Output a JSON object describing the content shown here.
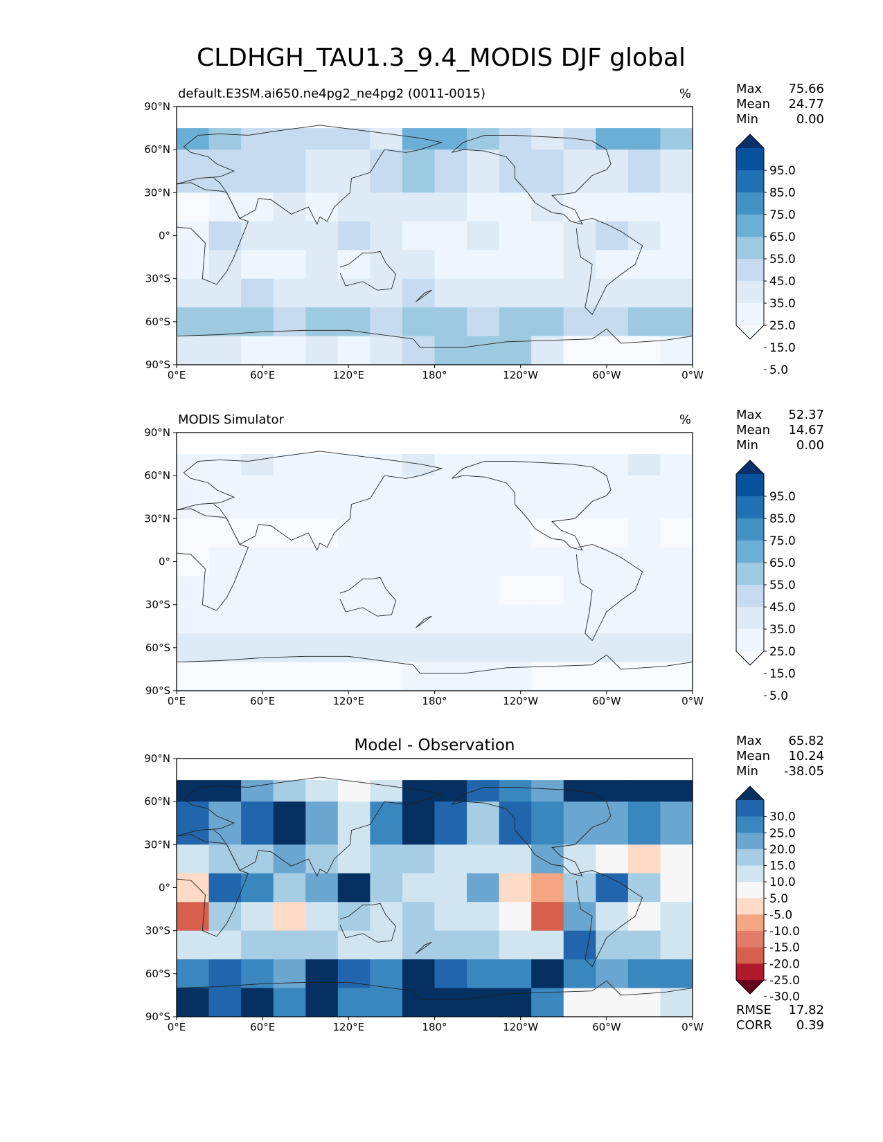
{
  "figure": {
    "title": "CLDHGH_TAU1.3_9.4_MODIS DJF global"
  },
  "chart_data": [
    {
      "type": "heatmap",
      "panel": "test",
      "subtitle_left": "default.E3SM.ai650.ne4pg2_ne4pg2 (0011-0015)",
      "subtitle_center": "",
      "units": "%",
      "stats": {
        "max": "75.66",
        "mean": "24.77",
        "min": "0.00"
      },
      "stat_labels": {
        "max": "Max",
        "mean": "Mean",
        "min": "Min"
      },
      "xticks": [
        "0°E",
        "60°E",
        "120°E",
        "180°",
        "120°W",
        "60°W",
        "0°W"
      ],
      "yticks": [
        "90°N",
        "60°N",
        "30°N",
        "0°",
        "30°S",
        "60°S",
        "90°S"
      ],
      "xlim": [
        0,
        360
      ],
      "ylim": [
        -90,
        90
      ],
      "colorbar": {
        "labels": [
          "95.0",
          "85.0",
          "75.0",
          "65.0",
          "55.0",
          "45.0",
          "35.0",
          "25.0",
          "15.0",
          "5.0"
        ],
        "colors": [
          "#08306b",
          "#08519c",
          "#2171b5",
          "#4292c6",
          "#6baed6",
          "#9ecae1",
          "#c6dbef",
          "#deebf7",
          "#eef5fc",
          "#f7fbff"
        ],
        "extend": "both"
      },
      "field": [
        {
          "lat_band": [
            60,
            75
          ],
          "values": [
            55,
            45,
            40,
            40,
            35,
            35,
            30,
            55,
            55,
            45,
            40,
            30,
            40,
            60,
            60,
            45
          ]
        },
        {
          "lat_band": [
            30,
            60
          ],
          "values": [
            40,
            35,
            40,
            35,
            30,
            25,
            40,
            45,
            40,
            30,
            40,
            35,
            30,
            30,
            35,
            30
          ]
        },
        {
          "lat_band": [
            10,
            30
          ],
          "values": [
            10,
            15,
            20,
            25,
            20,
            25,
            30,
            30,
            25,
            20,
            20,
            25,
            20,
            15,
            20,
            15
          ]
        },
        {
          "lat_band": [
            -10,
            10
          ],
          "values": [
            15,
            40,
            25,
            30,
            30,
            35,
            25,
            20,
            20,
            25,
            20,
            15,
            25,
            35,
            30,
            20
          ]
        },
        {
          "lat_band": [
            -30,
            -10
          ],
          "values": [
            20,
            25,
            15,
            20,
            25,
            20,
            25,
            25,
            20,
            15,
            20,
            20,
            25,
            20,
            15,
            20
          ]
        },
        {
          "lat_band": [
            -50,
            -30
          ],
          "values": [
            30,
            25,
            35,
            30,
            30,
            25,
            30,
            35,
            30,
            30,
            25,
            25,
            30,
            30,
            30,
            30
          ]
        },
        {
          "lat_band": [
            -70,
            -50
          ],
          "values": [
            45,
            50,
            45,
            40,
            50,
            45,
            40,
            50,
            45,
            40,
            45,
            50,
            40,
            40,
            45,
            45
          ]
        },
        {
          "lat_band": [
            -90,
            -70
          ],
          "values": [
            25,
            25,
            20,
            20,
            25,
            20,
            25,
            40,
            45,
            50,
            50,
            30,
            10,
            10,
            10,
            20
          ]
        }
      ]
    },
    {
      "type": "heatmap",
      "panel": "reference",
      "subtitle_left": "MODIS Simulator",
      "subtitle_center": "",
      "units": "%",
      "stats": {
        "max": "52.37",
        "mean": "14.67",
        "min": "0.00"
      },
      "stat_labels": {
        "max": "Max",
        "mean": "Mean",
        "min": "Min"
      },
      "xticks": [
        "0°E",
        "60°E",
        "120°E",
        "180°",
        "120°W",
        "60°W",
        "0°W"
      ],
      "yticks": [
        "90°N",
        "60°N",
        "30°N",
        "0°",
        "30°S",
        "60°S",
        "90°S"
      ],
      "xlim": [
        0,
        360
      ],
      "ylim": [
        -90,
        90
      ],
      "colorbar": {
        "labels": [
          "95.0",
          "85.0",
          "75.0",
          "65.0",
          "55.0",
          "45.0",
          "35.0",
          "25.0",
          "15.0",
          "5.0"
        ],
        "colors": [
          "#08306b",
          "#08519c",
          "#2171b5",
          "#4292c6",
          "#6baed6",
          "#9ecae1",
          "#c6dbef",
          "#deebf7",
          "#eef5fc",
          "#f7fbff"
        ],
        "extend": "both"
      },
      "field": [
        {
          "lat_band": [
            60,
            75
          ],
          "values": [
            20,
            20,
            25,
            20,
            20,
            20,
            20,
            25,
            20,
            20,
            20,
            20,
            20,
            20,
            25,
            20
          ]
        },
        {
          "lat_band": [
            30,
            60
          ],
          "values": [
            15,
            15,
            20,
            20,
            20,
            20,
            20,
            20,
            20,
            20,
            15,
            15,
            15,
            15,
            15,
            15
          ]
        },
        {
          "lat_band": [
            10,
            30
          ],
          "values": [
            5,
            5,
            10,
            10,
            10,
            15,
            15,
            15,
            15,
            15,
            15,
            10,
            10,
            10,
            15,
            10
          ]
        },
        {
          "lat_band": [
            -10,
            10
          ],
          "values": [
            10,
            15,
            15,
            15,
            15,
            20,
            15,
            15,
            15,
            15,
            15,
            15,
            15,
            20,
            20,
            15
          ]
        },
        {
          "lat_band": [
            -30,
            -10
          ],
          "values": [
            15,
            15,
            15,
            20,
            15,
            20,
            15,
            15,
            15,
            15,
            10,
            10,
            15,
            15,
            15,
            15
          ]
        },
        {
          "lat_band": [
            -50,
            -30
          ],
          "values": [
            20,
            20,
            20,
            20,
            20,
            20,
            20,
            20,
            20,
            20,
            20,
            20,
            20,
            20,
            20,
            20
          ]
        },
        {
          "lat_band": [
            -70,
            -50
          ],
          "values": [
            25,
            25,
            25,
            25,
            25,
            25,
            25,
            25,
            25,
            25,
            25,
            25,
            25,
            25,
            25,
            25
          ]
        },
        {
          "lat_band": [
            -90,
            -70
          ],
          "values": [
            10,
            10,
            10,
            10,
            10,
            10,
            10,
            15,
            15,
            15,
            15,
            10,
            10,
            10,
            10,
            10
          ]
        }
      ]
    },
    {
      "type": "heatmap",
      "panel": "difference",
      "subtitle_left": "",
      "subtitle_center": "Model - Observation",
      "units": "",
      "stats": {
        "max": "65.82",
        "mean": "10.24",
        "min": "-38.05"
      },
      "stat_labels": {
        "max": "Max",
        "mean": "Mean",
        "min": "Min"
      },
      "extra_stats": {
        "rmse_label": "RMSE",
        "rmse": "17.82",
        "corr_label": "CORR",
        "corr": "0.39"
      },
      "xticks": [
        "0°E",
        "60°E",
        "120°E",
        "180°",
        "120°W",
        "60°W",
        "0°W"
      ],
      "yticks": [
        "90°N",
        "60°N",
        "30°N",
        "0°",
        "30°S",
        "60°S",
        "90°S"
      ],
      "xlim": [
        0,
        360
      ],
      "ylim": [
        -90,
        90
      ],
      "colorbar": {
        "labels": [
          "30.0",
          "25.0",
          "20.0",
          "15.0",
          "10.0",
          "5.0",
          "-5.0",
          "-10.0",
          "-15.0",
          "-20.0",
          "-25.0",
          "-30.0"
        ],
        "colors": [
          "#053061",
          "#2166ac",
          "#3a87c0",
          "#6ba6d0",
          "#a6cde4",
          "#d1e5f0",
          "#f7f7f7",
          "#fddbc7",
          "#f4a582",
          "#e07c67",
          "#d6604d",
          "#b2182b",
          "#67001f"
        ],
        "extend": "both"
      },
      "field": [
        {
          "lat_band": [
            60,
            75
          ],
          "values": [
            35,
            30,
            15,
            10,
            5,
            -5,
            5,
            35,
            35,
            25,
            20,
            15,
            35,
            35,
            35,
            35
          ]
        },
        {
          "lat_band": [
            30,
            60
          ],
          "values": [
            25,
            15,
            25,
            35,
            15,
            5,
            20,
            30,
            25,
            10,
            25,
            20,
            15,
            15,
            20,
            15
          ]
        },
        {
          "lat_band": [
            10,
            30
          ],
          "values": [
            5,
            10,
            10,
            15,
            10,
            5,
            10,
            10,
            5,
            5,
            5,
            15,
            5,
            0,
            -10,
            0
          ]
        },
        {
          "lat_band": [
            -10,
            10
          ],
          "values": [
            -10,
            25,
            20,
            10,
            15,
            30,
            10,
            5,
            5,
            15,
            -10,
            -15,
            10,
            25,
            10,
            -5
          ]
        },
        {
          "lat_band": [
            -30,
            -10
          ],
          "values": [
            -25,
            10,
            5,
            -10,
            5,
            10,
            5,
            10,
            5,
            5,
            0,
            -25,
            15,
            5,
            0,
            5
          ]
        },
        {
          "lat_band": [
            -50,
            -30
          ],
          "values": [
            5,
            5,
            10,
            10,
            10,
            5,
            5,
            10,
            10,
            10,
            5,
            5,
            25,
            10,
            10,
            5
          ]
        },
        {
          "lat_band": [
            -70,
            -50
          ],
          "values": [
            20,
            25,
            20,
            15,
            30,
            25,
            20,
            30,
            25,
            20,
            20,
            30,
            20,
            15,
            20,
            20
          ]
        },
        {
          "lat_band": [
            -90,
            -70
          ],
          "values": [
            30,
            25,
            30,
            20,
            30,
            20,
            20,
            35,
            35,
            40,
            35,
            20,
            0,
            0,
            -5,
            5
          ]
        }
      ]
    }
  ]
}
